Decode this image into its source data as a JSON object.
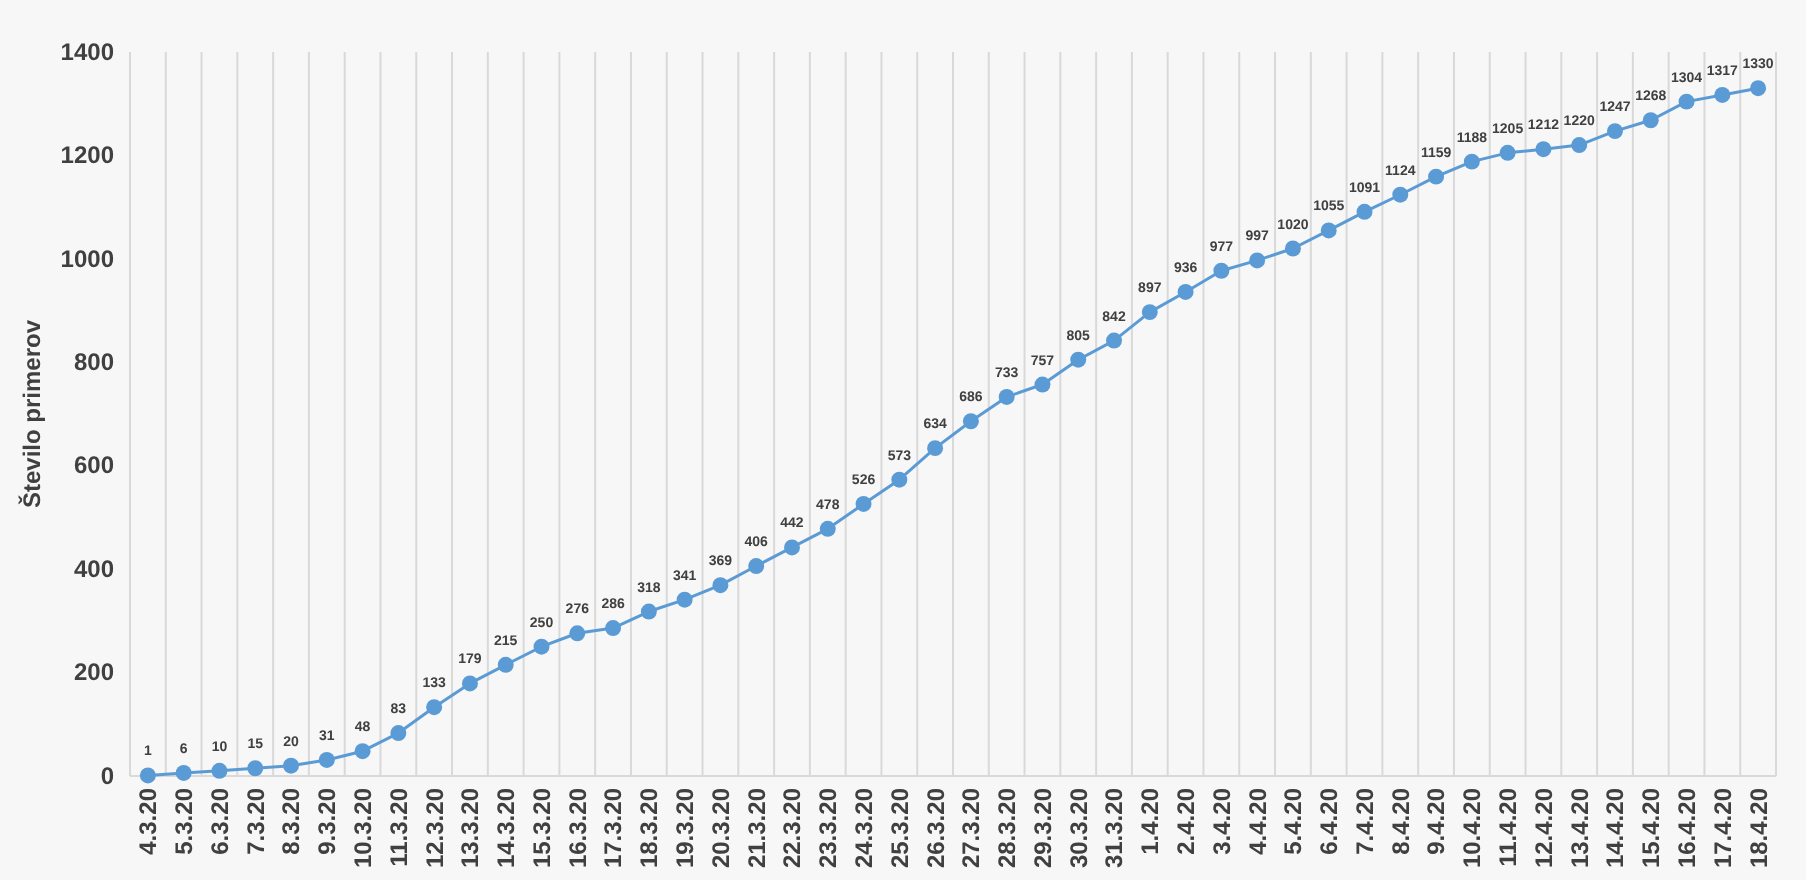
{
  "chart_data": {
    "type": "line",
    "ylabel": "Število primerov",
    "categories": [
      "4.3.20",
      "5.3.20",
      "6.3.20",
      "7.3.20",
      "8.3.20",
      "9.3.20",
      "10.3.20",
      "11.3.20",
      "12.3.20",
      "13.3.20",
      "14.3.20",
      "15.3.20",
      "16.3.20",
      "17.3.20",
      "18.3.20",
      "19.3.20",
      "20.3.20",
      "21.3.20",
      "22.3.20",
      "23.3.20",
      "24.3.20",
      "25.3.20",
      "26.3.20",
      "27.3.20",
      "28.3.20",
      "29.3.20",
      "30.3.20",
      "31.3.20",
      "1.4.20",
      "2.4.20",
      "3.4.20",
      "4.4.20",
      "5.4.20",
      "6.4.20",
      "7.4.20",
      "8.4.20",
      "9.4.20",
      "10.4.20",
      "11.4.20",
      "12.4.20",
      "13.4.20",
      "14.4.20",
      "15.4.20",
      "16.4.20",
      "17.4.20",
      "18.4.20"
    ],
    "series": [
      {
        "color": "#5b9bd5",
        "values": [
          1,
          6,
          10,
          15,
          20,
          31,
          48,
          83,
          133,
          179,
          215,
          250,
          276,
          286,
          318,
          341,
          369,
          406,
          442,
          478,
          526,
          573,
          634,
          686,
          733,
          757,
          805,
          842,
          897,
          936,
          977,
          997,
          1020,
          1055,
          1091,
          1124,
          1159,
          1188,
          1205,
          1212,
          1220,
          1247,
          1268,
          1304,
          1317,
          1330
        ]
      }
    ],
    "ylim": [
      0,
      1400
    ],
    "yticks": [
      0,
      200,
      400,
      600,
      800,
      1000,
      1200,
      1400
    ],
    "grid": "x",
    "marker": "circle",
    "line_style": "solid",
    "data_labels": true
  }
}
